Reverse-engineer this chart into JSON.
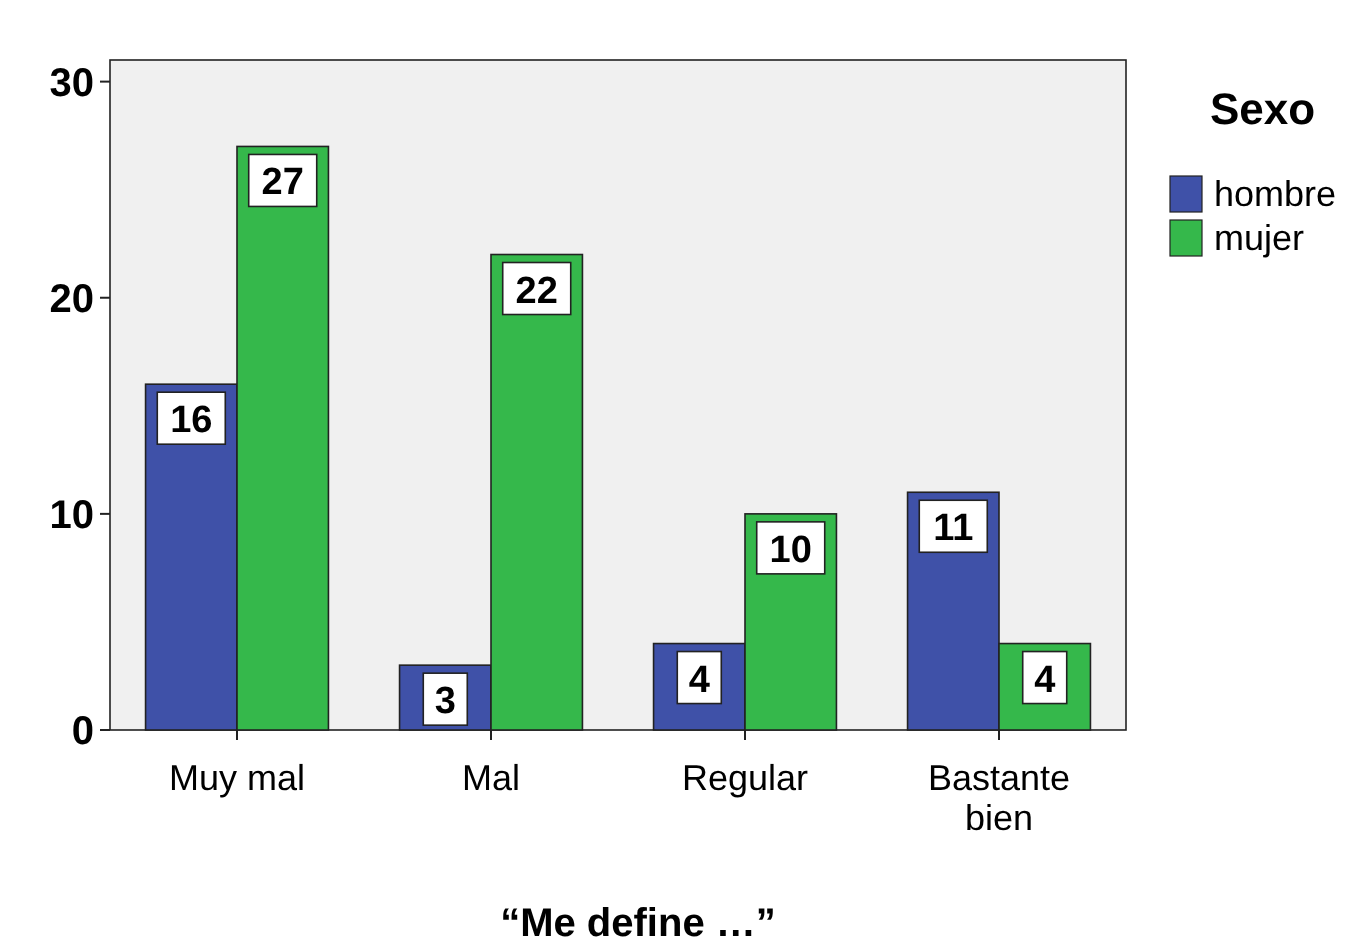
{
  "chart_data": {
    "type": "bar",
    "xlabel": "“Me define …”",
    "legend_title": "Sexo",
    "categories": [
      "Muy mal",
      "Mal",
      "Regular",
      "Bastante bien"
    ],
    "series": [
      {
        "name": "hombre",
        "color": "#3f51a8",
        "values": [
          16,
          3,
          4,
          11
        ]
      },
      {
        "name": "mujer",
        "color": "#35b84b",
        "values": [
          27,
          22,
          10,
          4
        ]
      }
    ],
    "ylim": [
      0,
      31
    ],
    "yticks": [
      0,
      10,
      20,
      30
    ],
    "data_labels": true,
    "legend": "right",
    "grid": false
  }
}
